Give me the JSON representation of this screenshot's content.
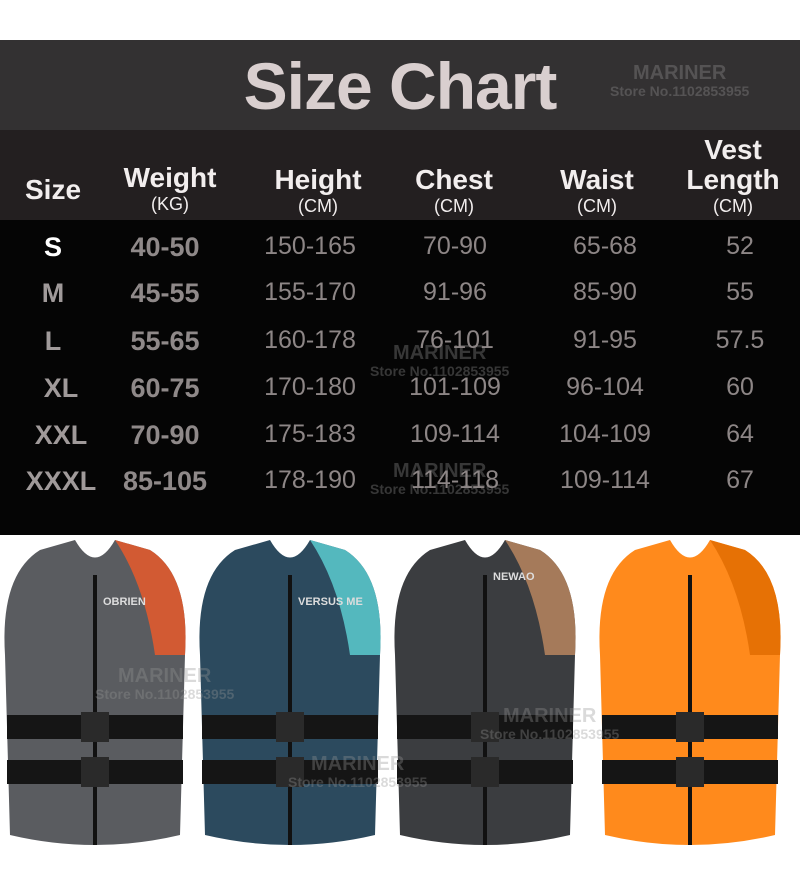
{
  "title": "Size Chart",
  "watermark": {
    "brand": "MARINER",
    "store": "Store No.1102853955"
  },
  "columns": [
    {
      "label": "Size",
      "unit": ""
    },
    {
      "label": "Weight",
      "unit": "(KG)"
    },
    {
      "label": "Height",
      "unit": "(CM)"
    },
    {
      "label": "Chest",
      "unit": "(CM)"
    },
    {
      "label": "Waist",
      "unit": "(CM)"
    },
    {
      "label": "Vest Length",
      "unit": "(CM)"
    }
  ],
  "rows": [
    [
      "S",
      "40-50",
      "150-165",
      "70-90",
      "65-68",
      "52"
    ],
    [
      "M",
      "45-55",
      "155-170",
      "91-96",
      "85-90",
      "55"
    ],
    [
      "L",
      "55-65",
      "160-178",
      "76-101",
      "91-95",
      "57.5"
    ],
    [
      "XL",
      "60-75",
      "170-180",
      "101-109",
      "96-104",
      "60"
    ],
    [
      "XXL",
      "70-90",
      "175-183",
      "109-114",
      "104-109",
      "64"
    ],
    [
      "XXXL",
      "85-105",
      "178-190",
      "114-118",
      "109-114",
      "67"
    ]
  ],
  "products": [
    {
      "logo": "OBRIEN",
      "color": "#5a5c60",
      "accent": "#f05a28"
    },
    {
      "logo": "VERSUS ME",
      "color": "#2c4a5e",
      "accent": "#5fd3d6"
    },
    {
      "logo": "NEWAO",
      "color": "#3b3d40",
      "accent": "#c08a60"
    },
    {
      "logo": "",
      "color": "#ff8a1c",
      "accent": "#e06a00"
    }
  ]
}
